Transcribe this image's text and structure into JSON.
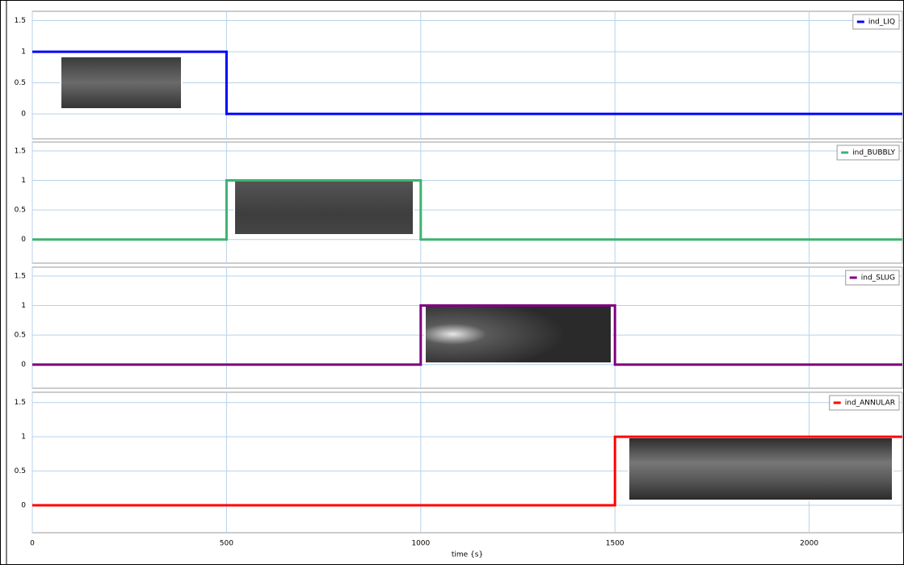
{
  "chart_data": [
    {
      "type": "line",
      "xlim": [
        0,
        2240
      ],
      "ylim": [
        -0.4,
        1.65
      ],
      "yticks": [
        0,
        0.5,
        1,
        1.5
      ],
      "grid": true,
      "legend": "upper right",
      "series": [
        {
          "name": "ind_LIQ",
          "color": "#0000ff",
          "x": [
            0,
            500,
            500,
            2240
          ],
          "values": [
            1,
            1,
            0,
            0
          ]
        }
      ]
    },
    {
      "type": "line",
      "xlim": [
        0,
        2240
      ],
      "ylim": [
        -0.4,
        1.65
      ],
      "yticks": [
        0,
        0.5,
        1,
        1.5
      ],
      "grid": true,
      "legend": "upper right",
      "series": [
        {
          "name": "ind_BUBBLY",
          "color": "#3cb371",
          "x": [
            0,
            500,
            500,
            1000,
            1000,
            2240
          ],
          "values": [
            0,
            0,
            1,
            1,
            0,
            0
          ]
        }
      ]
    },
    {
      "type": "line",
      "xlim": [
        0,
        2240
      ],
      "ylim": [
        -0.4,
        1.65
      ],
      "yticks": [
        0,
        0.5,
        1,
        1.5
      ],
      "grid": true,
      "legend": "upper right",
      "series": [
        {
          "name": "ind_SLUG",
          "color": "#800080",
          "x": [
            0,
            1000,
            1000,
            1500,
            1500,
            2240
          ],
          "values": [
            0,
            0,
            1,
            1,
            0,
            0
          ]
        }
      ]
    },
    {
      "type": "line",
      "xlim": [
        0,
        2240
      ],
      "ylim": [
        -0.4,
        1.65
      ],
      "yticks": [
        0,
        0.5,
        1,
        1.5
      ],
      "grid": true,
      "legend": "upper right",
      "xticks": [
        0,
        500,
        1000,
        1500,
        2000
      ],
      "xlabel": "time {s}",
      "series": [
        {
          "name": "ind_ANNULAR",
          "color": "#ff0000",
          "x": [
            0,
            1500,
            1500,
            2240
          ],
          "values": [
            0,
            0,
            1,
            1
          ]
        }
      ]
    }
  ]
}
